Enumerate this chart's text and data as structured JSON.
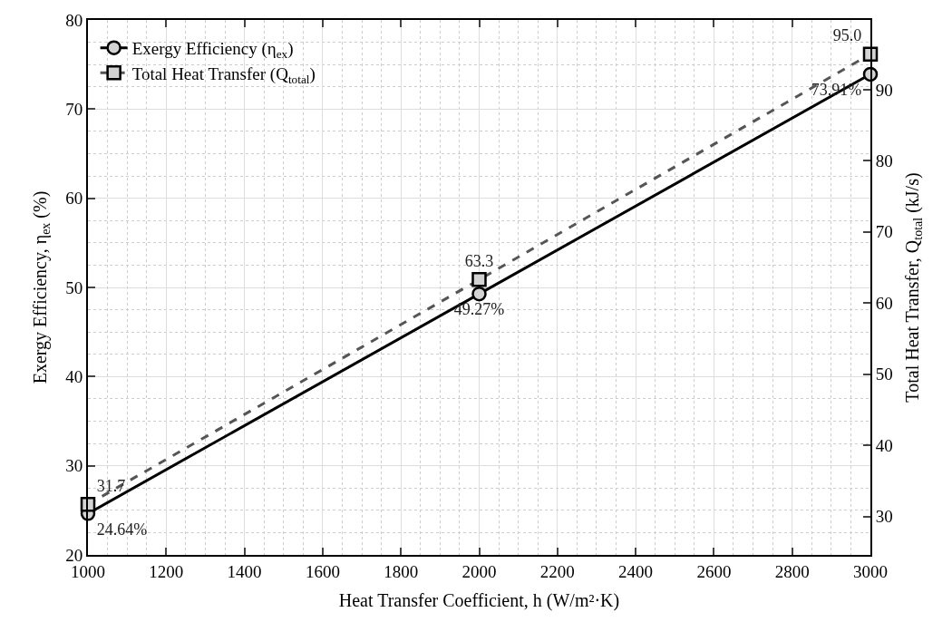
{
  "chart_data": {
    "type": "line",
    "xlabel": "Heat Transfer Coefficient, h (W/m²·K)",
    "ylabel": "Exergy Efficiency, η$_{ex}$ (%)",
    "y2label": "Total Heat Transfer, Q$_{total}$ (kJ/s)",
    "x": [
      1000,
      2000,
      3000
    ],
    "series": [
      {
        "name": "Exergy Efficiency (η$_{ex}$)",
        "color": "#000000",
        "values": [
          24.64,
          49.27,
          73.91
        ],
        "value_labels": [
          "24.64%",
          "49.27%",
          "73.91%"
        ],
        "marker": "circle",
        "line_style": "solid"
      },
      {
        "name": "Total Heat Transfer (Q$_{total}$)",
        "color": "#555555",
        "values": [
          31.7,
          63.3,
          95.0
        ],
        "value_labels": [
          "31.7",
          "63.3",
          "95.0"
        ],
        "marker": "square",
        "line_style": "dashed",
        "axis": "y2"
      }
    ],
    "xlim": [
      1000,
      3000
    ],
    "xticks": [
      1000,
      1200,
      1400,
      1600,
      1800,
      2000,
      2200,
      2400,
      2600,
      2800,
      3000
    ],
    "ylim": [
      20,
      80
    ],
    "yticks": [
      20,
      30,
      40,
      50,
      60,
      70,
      80
    ],
    "y2lim": [
      24.6,
      99.8
    ],
    "y2ticks": [
      30,
      40,
      50,
      60,
      70,
      80,
      90
    ],
    "grid": true,
    "legend": "top left"
  }
}
